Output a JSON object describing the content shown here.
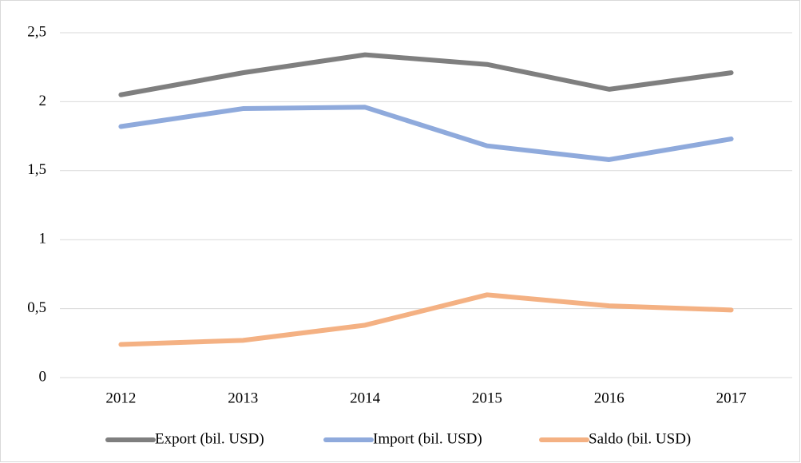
{
  "chart_data": {
    "type": "line",
    "categories": [
      "2012",
      "2013",
      "2014",
      "2015",
      "2016",
      "2017"
    ],
    "series": [
      {
        "name": "Export (bil. USD)",
        "color": "#7f7f7f",
        "values": [
          2.05,
          2.21,
          2.34,
          2.27,
          2.09,
          2.21
        ]
      },
      {
        "name": "Import (bil. USD)",
        "color": "#8faadc",
        "values": [
          1.82,
          1.95,
          1.96,
          1.68,
          1.58,
          1.73
        ]
      },
      {
        "name": "Saldo (bil. USD)",
        "color": "#f4b183",
        "values": [
          0.24,
          0.27,
          0.38,
          0.6,
          0.52,
          0.49
        ]
      }
    ],
    "ylim": [
      0,
      2.5
    ],
    "yticks": [
      0,
      {
        "value": 0.5,
        "label": "0,5"
      },
      1,
      {
        "value": 1.5,
        "label": "1,5"
      },
      2,
      {
        "value": 2.5,
        "label": "2,5"
      }
    ],
    "grid": true,
    "legend": "bottom"
  }
}
